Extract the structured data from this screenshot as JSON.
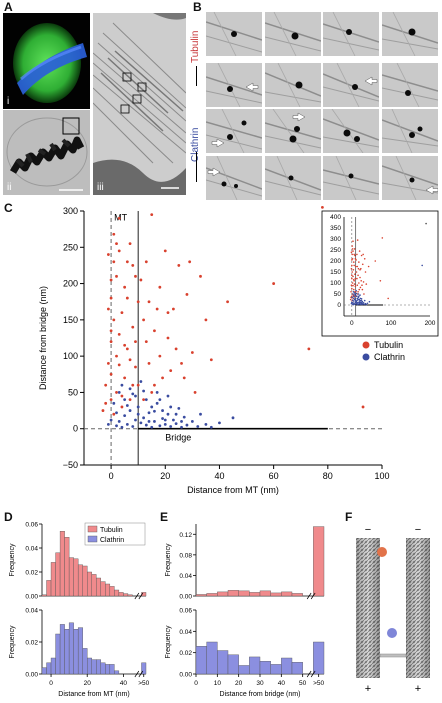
{
  "figure": {
    "panels": {
      "A": "A",
      "B": "B",
      "C": "C",
      "D": "D",
      "E": "E",
      "F": "F"
    },
    "panel_a": {
      "sub_labels": [
        "i",
        "ii",
        "iii"
      ]
    },
    "panel_b": {
      "row_labels": [
        "Tubulin",
        "Clathrin"
      ],
      "colors": {
        "tubulin": "#c8373a",
        "clathrin": "#3a4ca0"
      }
    },
    "panel_f": {
      "minus": "−",
      "plus": "+"
    }
  },
  "chart_data": [
    {
      "id": "C",
      "type": "scatter",
      "xlabel": "Distance from MT (nm)",
      "ylabel": "Distance from bridge (nm)",
      "xlim": [
        -10,
        100
      ],
      "ylim": [
        -50,
        300
      ],
      "xticks": [
        0,
        20,
        40,
        60,
        80,
        100
      ],
      "yticks": [
        -50,
        0,
        50,
        100,
        150,
        200,
        250,
        300
      ],
      "annotations": {
        "mt": "MT",
        "bridge": "Bridge"
      },
      "legend": {
        "position": "right",
        "entries": [
          "Tubulin",
          "Clathrin"
        ]
      },
      "series": [
        {
          "name": "Tubulin",
          "color": "#d9412e",
          "points": [
            [
              -2,
              60
            ],
            [
              -1,
              90
            ],
            [
              0,
              120
            ],
            [
              1,
              150
            ],
            [
              0,
              180
            ],
            [
              2,
              210
            ],
            [
              -1,
              240
            ],
            [
              1,
              268
            ],
            [
              3,
              290
            ],
            [
              2,
              100
            ],
            [
              0,
              75
            ],
            [
              -2,
              35
            ],
            [
              4,
              45
            ],
            [
              5,
              70
            ],
            [
              3,
              130
            ],
            [
              4,
              160
            ],
            [
              5,
              195
            ],
            [
              6,
              230
            ],
            [
              7,
              255
            ],
            [
              6,
              110
            ],
            [
              8,
              60
            ],
            [
              8,
              140
            ],
            [
              9,
              85
            ],
            [
              10,
              175
            ],
            [
              11,
              205
            ],
            [
              12,
              150
            ],
            [
              13,
              120
            ],
            [
              14,
              90
            ],
            [
              15,
              295
            ],
            [
              15,
              50
            ],
            [
              16,
              135
            ],
            [
              17,
              165
            ],
            [
              18,
              100
            ],
            [
              19,
              70
            ],
            [
              20,
              245
            ],
            [
              21,
              125
            ],
            [
              22,
              80
            ],
            [
              23,
              165
            ],
            [
              24,
              110
            ],
            [
              25,
              225
            ],
            [
              26,
              90
            ],
            [
              27,
              70
            ],
            [
              28,
              185
            ],
            [
              30,
              105
            ],
            [
              31,
              50
            ],
            [
              33,
              210
            ],
            [
              35,
              150
            ],
            [
              37,
              95
            ],
            [
              43,
              175
            ],
            [
              60,
              200
            ],
            [
              73,
              110
            ],
            [
              78,
              305
            ],
            [
              93,
              30
            ],
            [
              1,
              20
            ],
            [
              2,
              50
            ],
            [
              3,
              88
            ],
            [
              -1,
              165
            ],
            [
              0,
              205
            ],
            [
              2,
              255
            ],
            [
              4,
              30
            ],
            [
              6,
              180
            ],
            [
              7,
              40
            ],
            [
              9,
              210
            ],
            [
              10,
              60
            ],
            [
              12,
              40
            ],
            [
              13,
              230
            ],
            [
              14,
              175
            ],
            [
              16,
              60
            ],
            [
              18,
              195
            ],
            [
              21,
              160
            ],
            [
              29,
              230
            ],
            [
              0,
              135
            ],
            [
              1,
              230
            ],
            [
              3,
              245
            ],
            [
              5,
              115
            ],
            [
              7,
              95
            ],
            [
              9,
              120
            ],
            [
              -3,
              25
            ],
            [
              0,
              40
            ],
            [
              8,
              225
            ]
          ]
        },
        {
          "name": "Clathrin",
          "color": "#3a4ca0",
          "points": [
            [
              2,
              4
            ],
            [
              3,
              10
            ],
            [
              4,
              2
            ],
            [
              5,
              18
            ],
            [
              6,
              6
            ],
            [
              7,
              25
            ],
            [
              8,
              3
            ],
            [
              9,
              12
            ],
            [
              10,
              30
            ],
            [
              11,
              8
            ],
            [
              12,
              15
            ],
            [
              13,
              5
            ],
            [
              14,
              22
            ],
            [
              15,
              2
            ],
            [
              16,
              10
            ],
            [
              17,
              35
            ],
            [
              18,
              4
            ],
            [
              19,
              14
            ],
            [
              20,
              6
            ],
            [
              21,
              20
            ],
            [
              22,
              3
            ],
            [
              23,
              12
            ],
            [
              24,
              7
            ],
            [
              25,
              28
            ],
            [
              26,
              2
            ],
            [
              27,
              16
            ],
            [
              28,
              5
            ],
            [
              30,
              10
            ],
            [
              32,
              3
            ],
            [
              33,
              20
            ],
            [
              35,
              6
            ],
            [
              37,
              2
            ],
            [
              40,
              8
            ],
            [
              45,
              15
            ],
            [
              1,
              35
            ],
            [
              3,
              50
            ],
            [
              5,
              40
            ],
            [
              7,
              55
            ],
            [
              9,
              45
            ],
            [
              11,
              65
            ],
            [
              13,
              40
            ],
            [
              15,
              30
            ],
            [
              17,
              50
            ],
            [
              19,
              25
            ],
            [
              21,
              45
            ],
            [
              2,
              22
            ],
            [
              4,
              60
            ],
            [
              6,
              32
            ],
            [
              8,
              48
            ],
            [
              10,
              20
            ],
            [
              12,
              52
            ],
            [
              14,
              10
            ],
            [
              16,
              24
            ],
            [
              18,
              40
            ],
            [
              20,
              12
            ],
            [
              22,
              30
            ],
            [
              24,
              20
            ],
            [
              26,
              10
            ],
            [
              0,
              12
            ],
            [
              -1,
              6
            ]
          ]
        }
      ],
      "inset": {
        "xlim": [
          -20,
          200
        ],
        "ylim": [
          -50,
          400
        ],
        "xticks": [
          0,
          100,
          200
        ],
        "yticks": [
          0,
          50,
          100,
          150,
          200,
          250,
          300,
          350,
          400
        ]
      }
    },
    {
      "id": "D",
      "type": "bar",
      "xlabel": "Distance from MT (nm)",
      "ylabel": "Frequency",
      "xticks": [
        "0",
        "20",
        "40",
        ">50"
      ],
      "legend": {
        "position": "top-right",
        "entries": [
          "Tubulin",
          "Clathrin"
        ]
      },
      "series": [
        {
          "name": "Tubulin",
          "color": "#f08a8c",
          "ylim": [
            0,
            0.06
          ],
          "yticks": [
            "0.00",
            "0.02",
            "0.04",
            "0.06"
          ],
          "bins": [
            -5,
            -2.5,
            0,
            2.5,
            5,
            7.5,
            10,
            12.5,
            15,
            17.5,
            20,
            22.5,
            25,
            27.5,
            30,
            32.5,
            35,
            37.5,
            40,
            42.5,
            45,
            47.5
          ],
          "values": [
            0.001,
            0.013,
            0.028,
            0.036,
            0.054,
            0.049,
            0.032,
            0.031,
            0.026,
            0.025,
            0.02,
            0.018,
            0.015,
            0.012,
            0.01,
            0.008,
            0.005,
            0.003,
            0.002,
            0.001,
            0.0,
            0.003
          ]
        },
        {
          "name": "Clathrin",
          "color": "#8b8fe0",
          "ylim": [
            0,
            0.04
          ],
          "yticks": [
            "0.00",
            "0.02",
            "0.04"
          ],
          "bins": [
            -5,
            -2.5,
            0,
            2.5,
            5,
            7.5,
            10,
            12.5,
            15,
            17.5,
            20,
            22.5,
            25,
            27.5,
            30,
            32.5,
            35,
            37.5,
            40,
            42.5,
            45,
            47.5
          ],
          "values": [
            0.004,
            0.007,
            0.01,
            0.025,
            0.031,
            0.028,
            0.032,
            0.028,
            0.029,
            0.016,
            0.01,
            0.009,
            0.009,
            0.007,
            0.006,
            0.006,
            0.002,
            0.0,
            0.0,
            0.0,
            0.0,
            0.007
          ]
        }
      ]
    },
    {
      "id": "E",
      "type": "bar",
      "xlabel": "Distance from bridge (nm)",
      "ylabel": "Frequency",
      "xticks": [
        "0",
        "10",
        "20",
        "30",
        "40",
        "50",
        ">50"
      ],
      "series": [
        {
          "name": "Tubulin",
          "color": "#f08a8c",
          "ylim": [
            0,
            0.14
          ],
          "yticks": [
            "0.00",
            "0.04",
            "0.08",
            "0.12"
          ],
          "bins": [
            0,
            5,
            10,
            15,
            20,
            25,
            30,
            35,
            40,
            45,
            50,
            55
          ],
          "values": [
            0.003,
            0.005,
            0.008,
            0.011,
            0.01,
            0.007,
            0.01,
            0.006,
            0.008,
            0.005,
            0.0,
            0.135
          ]
        },
        {
          "name": "Clathrin",
          "color": "#8b8fe0",
          "ylim": [
            0,
            0.06
          ],
          "yticks": [
            "0.00",
            "0.02",
            "0.04",
            "0.06"
          ],
          "bins": [
            0,
            5,
            10,
            15,
            20,
            25,
            30,
            35,
            40,
            45,
            50,
            55
          ],
          "values": [
            0.026,
            0.03,
            0.022,
            0.018,
            0.008,
            0.016,
            0.012,
            0.009,
            0.015,
            0.011,
            0.0,
            0.03
          ]
        }
      ]
    }
  ]
}
